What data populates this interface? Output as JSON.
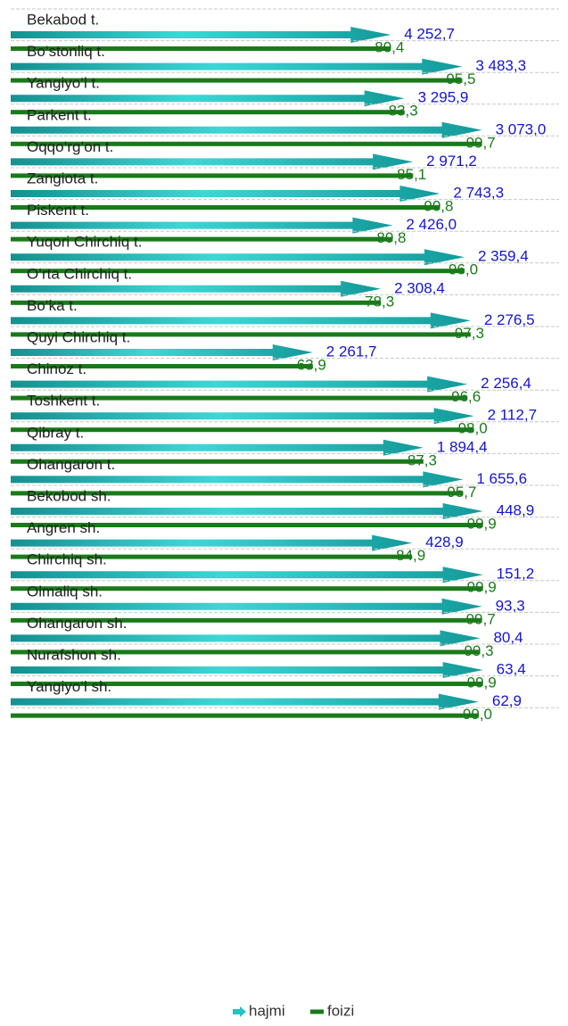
{
  "chart_data": {
    "type": "arrow-bar",
    "categories": [
      "Bekabod t.",
      "Bo‘stonliq t.",
      "Yangiyo‘l t.",
      "Parkent t.",
      "Oqqo‘rg‘on t.",
      "Zangiota t.",
      "Piskent t.",
      "Yuqori Chirchiq t.",
      "O‘rta Chirchiq t.",
      "Bo‘ka t.",
      "Quyi Chirchiq t.",
      "Chinoz t.",
      "Toshkent t.",
      "Qibray t.",
      "Ohangaron t.",
      "Bekobod sh.",
      "Angren sh.",
      "Chirchiq sh.",
      "Olmaliq sh.",
      "Ohangaron sh.",
      "Nurafshon sh.",
      "Yangiyo‘l sh."
    ],
    "series": [
      {
        "name": "hajmi",
        "color": "#22c4c4",
        "values": [
          4252.7,
          3483.3,
          3295.9,
          3073.0,
          2971.2,
          2743.3,
          2426.0,
          2359.4,
          2308.4,
          2276.5,
          2261.7,
          2256.4,
          2112.7,
          1894.4,
          1655.6,
          448.9,
          428.9,
          151.2,
          93.3,
          80.4,
          63.4,
          62.9
        ],
        "value_labels": [
          "4 252,7",
          "3 483,3",
          "3 295,9",
          "3 073,0",
          "2 971,2",
          "2 743,3",
          "2 426,0",
          "2 359,4",
          "2 308,4",
          "2 276,5",
          "2 261,7",
          "2 256,4",
          "2 112,7",
          "1 894,4",
          "1 655,6",
          "448,9",
          "428,9",
          "151,2",
          "93,3",
          "80,4",
          "63,4",
          "62,9"
        ]
      },
      {
        "name": "foizi",
        "color": "#1a7a1a",
        "values": [
          80.4,
          95.5,
          83.3,
          99.7,
          85.1,
          90.8,
          80.8,
          96.0,
          78.3,
          97.3,
          63.9,
          96.6,
          98.0,
          87.3,
          95.7,
          99.9,
          84.9,
          99.9,
          99.7,
          99.3,
          99.9,
          99.0
        ],
        "value_labels": [
          "80,4",
          "95,5",
          "83,3",
          "99,7",
          "85,1",
          "90,8",
          "80,8",
          "96,0",
          "78,3",
          "97,3",
          "63,9",
          "96,6",
          "98,0",
          "87,3",
          "95,7",
          "99,9",
          "84,9",
          "99,9",
          "99,7",
          "99,3",
          "99,9",
          "99,0"
        ]
      }
    ],
    "xlim": [
      0,
      116
    ]
  }
}
